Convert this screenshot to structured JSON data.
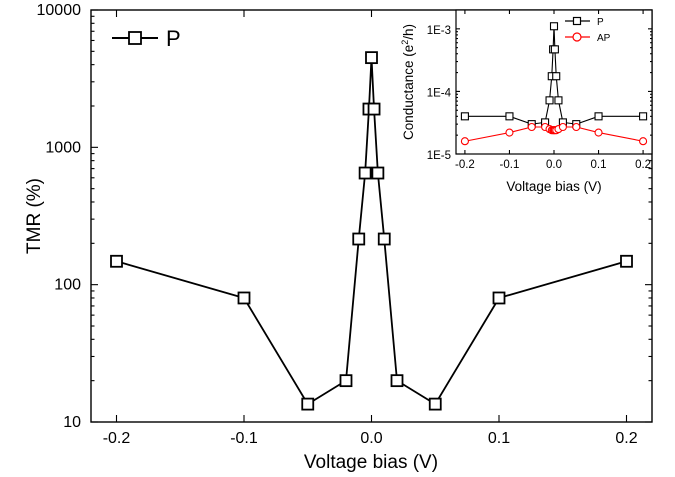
{
  "chart_data": [
    {
      "type": "line",
      "xlabel": "Voltage bias (V)",
      "ylabel": "TMR (%)",
      "xlim": [
        -0.22,
        0.22
      ],
      "ylim": [
        10,
        10000
      ],
      "yscale": "log",
      "xticks": [
        "-0.2",
        "-0.1",
        "0.0",
        "0.1",
        "0.2"
      ],
      "xtick_values": [
        -0.2,
        -0.1,
        0.0,
        0.1,
        0.2
      ],
      "yticks": [
        "10",
        "100",
        "1000",
        "10000"
      ],
      "ytick_values": [
        10,
        100,
        1000,
        10000
      ],
      "legend_position": "top-left",
      "series": [
        {
          "name": "P",
          "color": "#000000",
          "marker": "square",
          "x": [
            -0.2,
            -0.1,
            -0.05,
            -0.02,
            -0.01,
            -0.005,
            -0.002,
            0.0,
            0.002,
            0.005,
            0.01,
            0.02,
            0.05,
            0.1,
            0.2
          ],
          "y": [
            148,
            80,
            13.5,
            20,
            215,
            650,
            1900,
            4500,
            1900,
            650,
            215,
            20,
            13.5,
            80,
            148
          ]
        }
      ]
    },
    {
      "type": "line",
      "xlabel": "Voltage bias (V)",
      "ylabel_main": "Conductance (e",
      "ylabel_sup": "2",
      "ylabel_end": "/h)",
      "xlim": [
        -0.22,
        0.22
      ],
      "ylim": [
        1e-05,
        0.002
      ],
      "yscale": "log",
      "xticks": [
        "-0.2",
        "-0.1",
        "0.0",
        "0.1",
        "0.2"
      ],
      "xtick_values": [
        -0.2,
        -0.1,
        0.0,
        0.1,
        0.2
      ],
      "yticks": [
        "1E-5",
        "1E-4",
        "1E-3"
      ],
      "ytick_values": [
        1e-05,
        0.0001,
        0.001
      ],
      "legend_position": "top-right",
      "series": [
        {
          "name": "P",
          "color": "#000000",
          "marker": "square",
          "x": [
            -0.2,
            -0.1,
            -0.05,
            -0.02,
            -0.01,
            -0.005,
            -0.002,
            0.0,
            0.002,
            0.005,
            0.01,
            0.02,
            0.05,
            0.1,
            0.2
          ],
          "y": [
            4e-05,
            4e-05,
            3e-05,
            3.2e-05,
            7.2e-05,
            0.000175,
            0.00047,
            0.0011,
            0.00047,
            0.000175,
            7.2e-05,
            3.2e-05,
            3e-05,
            4e-05,
            4e-05
          ]
        },
        {
          "name": "AP",
          "color": "#ff0000",
          "marker": "circle",
          "x": [
            -0.2,
            -0.1,
            -0.05,
            -0.02,
            -0.01,
            -0.005,
            -0.002,
            0.0,
            0.002,
            0.005,
            0.01,
            0.02,
            0.05,
            0.1,
            0.2
          ],
          "y": [
            1.6e-05,
            2.2e-05,
            2.7e-05,
            2.7e-05,
            2.5e-05,
            2.4e-05,
            2.4e-05,
            2.4e-05,
            2.4e-05,
            2.4e-05,
            2.5e-05,
            2.7e-05,
            2.7e-05,
            2.2e-05,
            1.6e-05
          ]
        }
      ]
    }
  ]
}
